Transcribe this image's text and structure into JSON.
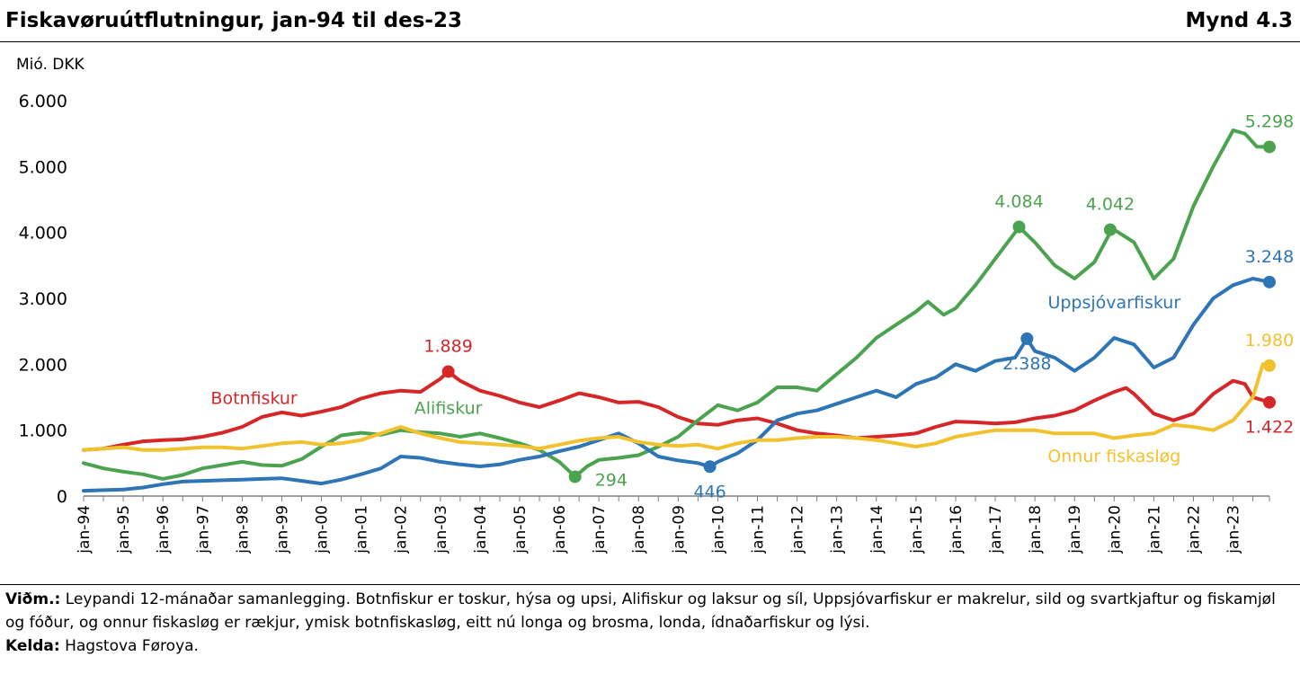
{
  "header": {
    "title": "Fiskavøruútflutningur, jan-94 til des-23",
    "figure_number": "Mynd 4.3"
  },
  "footer": {
    "note_label": "Viðm.:",
    "note_text": "Leypandi 12-mánaðar samanlegging. Botnfiskur er toskur, hýsa og upsi, Alifiskur og laksur og síl, Uppsjóvarfiskur er makrelur, sild og svartkjaftur og fiskamjøl og fóður, og onnur fiskasløg er rækjur, ymisk botnfiskasløg, eitt nú longa og brosma, londa, ídnaðarfiskur og lýsi.",
    "source_label": "Kelda:",
    "source_text": "Hagstova Føroya."
  },
  "chart_data": {
    "type": "line",
    "ylabel": "Mió. DKK",
    "ylim": [
      0,
      6000
    ],
    "yticks": [
      0,
      1000,
      2000,
      3000,
      4000,
      5000,
      6000
    ],
    "ytick_labels": [
      "0",
      "1.000",
      "2.000",
      "3.000",
      "4.000",
      "5.000",
      "6.000"
    ],
    "x_range": [
      1994.0,
      2023.9167
    ],
    "xtick_labels": [
      "jan-94",
      "jan-95",
      "jan-96",
      "jan-97",
      "jan-98",
      "jan-99",
      "jan-00",
      "jan-01",
      "jan-02",
      "jan-03",
      "jan-04",
      "jan-05",
      "jan-06",
      "jan-07",
      "jan-08",
      "jan-09",
      "jan-10",
      "jan-11",
      "jan-12",
      "jan-13",
      "jan-14",
      "jan-15",
      "jan-16",
      "jan-17",
      "jan-18",
      "jan-19",
      "jan-20",
      "jan-21",
      "jan-22",
      "jan-23"
    ],
    "grid": false,
    "legend": "inline labels",
    "series": [
      {
        "name": "Botnfiskur",
        "color": "#D62728",
        "x": [
          1994.0,
          1994.5,
          1995.0,
          1995.5,
          1996.0,
          1996.5,
          1997.0,
          1997.5,
          1998.0,
          1998.5,
          1999.0,
          1999.5,
          2000.0,
          2000.5,
          2001.0,
          2001.5,
          2002.0,
          2002.5,
          2003.0,
          2003.2,
          2003.5,
          2004.0,
          2004.5,
          2005.0,
          2005.5,
          2006.0,
          2006.5,
          2007.0,
          2007.5,
          2008.0,
          2008.5,
          2009.0,
          2009.5,
          2010.0,
          2010.5,
          2011.0,
          2011.5,
          2012.0,
          2012.5,
          2013.0,
          2013.5,
          2014.0,
          2014.5,
          2015.0,
          2015.5,
          2016.0,
          2016.5,
          2017.0,
          2017.5,
          2018.0,
          2018.5,
          2019.0,
          2019.5,
          2020.0,
          2020.3,
          2020.5,
          2021.0,
          2021.5,
          2022.0,
          2022.5,
          2023.0,
          2023.3,
          2023.5,
          2023.9167
        ],
        "values": [
          700,
          720,
          780,
          830,
          850,
          860,
          900,
          960,
          1050,
          1200,
          1270,
          1220,
          1280,
          1350,
          1480,
          1560,
          1600,
          1580,
          1780,
          1889,
          1750,
          1600,
          1520,
          1420,
          1350,
          1450,
          1560,
          1500,
          1420,
          1430,
          1350,
          1200,
          1100,
          1080,
          1150,
          1180,
          1100,
          1000,
          950,
          920,
          880,
          900,
          920,
          950,
          1050,
          1130,
          1120,
          1100,
          1120,
          1180,
          1220,
          1300,
          1450,
          1580,
          1640,
          1550,
          1250,
          1150,
          1250,
          1550,
          1750,
          1700,
          1500,
          1422
        ],
        "annotations": [
          {
            "x": 2003.2,
            "y": 1889,
            "label": "1.889",
            "pos": "above"
          },
          {
            "x": 2023.9167,
            "y": 1422,
            "label": "1.422",
            "pos": "below"
          }
        ],
        "label": {
          "text": "Botnfiskur",
          "x": 1998.3,
          "y": 1400
        }
      },
      {
        "name": "Alifiskur",
        "color": "#4CA34F",
        "x": [
          1994.0,
          1994.5,
          1995.0,
          1995.5,
          1996.0,
          1996.5,
          1997.0,
          1997.5,
          1998.0,
          1998.5,
          1999.0,
          1999.5,
          2000.0,
          2000.5,
          2001.0,
          2001.5,
          2002.0,
          2002.5,
          2003.0,
          2003.5,
          2004.0,
          2004.5,
          2005.0,
          2005.5,
          2006.0,
          2006.4,
          2006.7,
          2007.0,
          2007.5,
          2008.0,
          2008.5,
          2009.0,
          2009.5,
          2010.0,
          2010.5,
          2011.0,
          2011.5,
          2012.0,
          2012.5,
          2013.0,
          2013.5,
          2014.0,
          2014.5,
          2015.0,
          2015.3,
          2015.7,
          2016.0,
          2016.5,
          2017.0,
          2017.5,
          2017.6,
          2018.0,
          2018.5,
          2019.0,
          2019.5,
          2019.9,
          2020.0,
          2020.5,
          2021.0,
          2021.5,
          2022.0,
          2022.5,
          2023.0,
          2023.3,
          2023.6,
          2023.9167
        ],
        "values": [
          500,
          420,
          370,
          330,
          260,
          320,
          420,
          470,
          520,
          470,
          460,
          560,
          750,
          920,
          960,
          930,
          1000,
          970,
          950,
          900,
          950,
          880,
          800,
          700,
          520,
          294,
          450,
          550,
          580,
          620,
          750,
          900,
          1150,
          1380,
          1300,
          1420,
          1650,
          1650,
          1600,
          1850,
          2100,
          2400,
          2600,
          2800,
          2950,
          2750,
          2850,
          3200,
          3600,
          4000,
          4084,
          3850,
          3500,
          3300,
          3550,
          4000,
          4042,
          3850,
          3300,
          3600,
          4400,
          5000,
          5550,
          5500,
          5300,
          5298
        ],
        "annotations": [
          {
            "x": 2006.4,
            "y": 294,
            "label": "294",
            "pos": "right"
          },
          {
            "x": 2017.6,
            "y": 4084,
            "label": "4.084",
            "pos": "above"
          },
          {
            "x": 2019.9,
            "y": 4042,
            "label": "4.042",
            "pos": "above"
          },
          {
            "x": 2023.9167,
            "y": 5298,
            "label": "5.298",
            "pos": "above"
          }
        ],
        "label": {
          "text": "Alifiskur",
          "x": 2003.2,
          "y": 1250
        }
      },
      {
        "name": "Uppsjóvarfiskur",
        "color": "#2E75B6",
        "x": [
          1994.0,
          1994.5,
          1995.0,
          1995.5,
          1996.0,
          1996.5,
          1997.0,
          1997.5,
          1998.0,
          1998.5,
          1999.0,
          1999.5,
          2000.0,
          2000.5,
          2001.0,
          2001.5,
          2002.0,
          2002.5,
          2003.0,
          2003.5,
          2004.0,
          2004.5,
          2005.0,
          2005.5,
          2006.0,
          2006.5,
          2007.0,
          2007.5,
          2008.0,
          2008.5,
          2009.0,
          2009.5,
          2009.8,
          2010.0,
          2010.5,
          2011.0,
          2011.5,
          2012.0,
          2012.5,
          2013.0,
          2013.5,
          2014.0,
          2014.5,
          2015.0,
          2015.5,
          2016.0,
          2016.5,
          2017.0,
          2017.5,
          2017.8,
          2018.0,
          2018.5,
          2019.0,
          2019.5,
          2020.0,
          2020.5,
          2021.0,
          2021.5,
          2022.0,
          2022.5,
          2023.0,
          2023.5,
          2023.9167
        ],
        "values": [
          80,
          90,
          100,
          130,
          180,
          220,
          230,
          240,
          250,
          260,
          270,
          230,
          190,
          250,
          330,
          420,
          600,
          580,
          520,
          480,
          450,
          480,
          550,
          600,
          680,
          750,
          850,
          950,
          800,
          600,
          540,
          500,
          446,
          520,
          650,
          850,
          1150,
          1250,
          1300,
          1400,
          1500,
          1600,
          1500,
          1700,
          1800,
          2000,
          1900,
          2050,
          2100,
          2388,
          2200,
          2100,
          1900,
          2100,
          2400,
          2300,
          1950,
          2100,
          2600,
          3000,
          3200,
          3300,
          3248
        ],
        "annotations": [
          {
            "x": 2009.8,
            "y": 446,
            "label": "446",
            "pos": "below"
          },
          {
            "x": 2017.8,
            "y": 2388,
            "label": "2.388",
            "pos": "below"
          },
          {
            "x": 2023.9167,
            "y": 3248,
            "label": "3.248",
            "pos": "above"
          }
        ],
        "label": {
          "text": "Uppsjóvarfiskur",
          "x": 2020.0,
          "y": 2850
        }
      },
      {
        "name": "Onnur fiskasløg",
        "color": "#F2C12E",
        "x": [
          1994.0,
          1994.5,
          1995.0,
          1995.5,
          1996.0,
          1996.5,
          1997.0,
          1997.5,
          1998.0,
          1998.5,
          1999.0,
          1999.5,
          2000.0,
          2000.5,
          2001.0,
          2001.5,
          2002.0,
          2002.5,
          2003.0,
          2003.5,
          2004.0,
          2004.5,
          2005.0,
          2005.5,
          2006.0,
          2006.5,
          2007.0,
          2007.5,
          2008.0,
          2008.5,
          2009.0,
          2009.5,
          2010.0,
          2010.5,
          2011.0,
          2011.5,
          2012.0,
          2012.5,
          2013.0,
          2013.5,
          2014.0,
          2014.5,
          2015.0,
          2015.5,
          2016.0,
          2016.5,
          2017.0,
          2017.5,
          2018.0,
          2018.5,
          2019.0,
          2019.5,
          2020.0,
          2020.5,
          2021.0,
          2021.5,
          2022.0,
          2022.5,
          2023.0,
          2023.5,
          2023.75,
          2023.9167
        ],
        "values": [
          700,
          720,
          740,
          700,
          700,
          720,
          740,
          740,
          720,
          760,
          800,
          820,
          780,
          800,
          850,
          950,
          1050,
          950,
          880,
          820,
          800,
          780,
          760,
          720,
          780,
          840,
          880,
          900,
          820,
          780,
          760,
          780,
          720,
          800,
          850,
          850,
          880,
          900,
          900,
          880,
          850,
          800,
          750,
          800,
          900,
          950,
          1000,
          1000,
          1000,
          950,
          950,
          950,
          880,
          920,
          950,
          1080,
          1050,
          1000,
          1150,
          1500,
          2000,
          1980
        ],
        "annotations": [
          {
            "x": 2023.9167,
            "y": 1980,
            "label": "1.980",
            "pos": "above"
          }
        ],
        "label": {
          "text": "Onnur fiskasløg",
          "x": 2020.0,
          "y": 520
        }
      }
    ]
  }
}
